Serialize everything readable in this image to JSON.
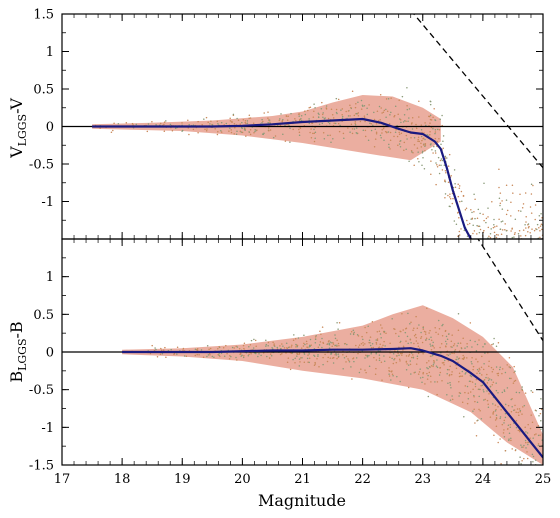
{
  "chart_data": [
    {
      "type": "scatter",
      "panel": "top",
      "title": "",
      "xlabel": "",
      "ylabel_main": "V",
      "ylabel_sub": "LGGS",
      "ylabel_tail": "-V",
      "xlim": [
        17,
        25
      ],
      "ylim": [
        -1.5,
        1.5
      ],
      "yticks": [
        "1.5",
        "1",
        "0.5",
        "0",
        "-0.5",
        "-1"
      ],
      "grid": false,
      "legend": "none",
      "cloud": {
        "description_points": [
          [
            17.5,
            0.03
          ],
          [
            18.5,
            0.05
          ],
          [
            19.5,
            0.08
          ],
          [
            20.5,
            0.14
          ],
          [
            21.0,
            0.2
          ],
          [
            21.5,
            0.32
          ],
          [
            22.0,
            0.42
          ],
          [
            22.5,
            0.4
          ],
          [
            23.0,
            0.25
          ],
          [
            23.3,
            0.1
          ],
          [
            23.3,
            -0.2
          ],
          [
            22.8,
            -0.45
          ],
          [
            22.0,
            -0.35
          ],
          [
            21.0,
            -0.22
          ],
          [
            20.0,
            -0.12
          ],
          [
            19.0,
            -0.06
          ],
          [
            18.0,
            -0.04
          ],
          [
            17.5,
            -0.03
          ]
        ],
        "color": "#e8a08f"
      },
      "scatter_dots": {
        "count": 900,
        "color_a": "#c9895a",
        "color_b": "#8a9a78"
      },
      "series": [
        {
          "style": "median",
          "color": "#1a1a80",
          "x": [
            17.5,
            18.0,
            18.5,
            19.0,
            19.5,
            20.0,
            20.5,
            21.0,
            21.5,
            22.0,
            22.3,
            22.6,
            22.8,
            23.0,
            23.2,
            23.3,
            23.4,
            23.5,
            23.6,
            23.7,
            23.8
          ],
          "y": [
            0.0,
            0.0,
            0.0,
            0.0,
            0.0,
            0.01,
            0.03,
            0.06,
            0.08,
            0.1,
            0.05,
            -0.03,
            -0.08,
            -0.1,
            -0.2,
            -0.3,
            -0.55,
            -0.85,
            -1.1,
            -1.35,
            -1.5
          ]
        }
      ],
      "reference_lines": [
        {
          "style": "solid",
          "x": [
            17,
            25
          ],
          "y": [
            0,
            0
          ]
        },
        {
          "style": "dashed",
          "x": [
            22.8,
            25
          ],
          "y": [
            1.55,
            -0.55
          ]
        }
      ]
    },
    {
      "type": "scatter",
      "panel": "bottom",
      "title": "",
      "xlabel": "Magnitude",
      "ylabel_main": "B",
      "ylabel_sub": "LGGS",
      "ylabel_tail": "-B",
      "xlim": [
        17,
        25
      ],
      "ylim": [
        -1.5,
        1.5
      ],
      "yticks": [
        "1",
        "0.5",
        "0",
        "-0.5",
        "-1",
        "-1.5"
      ],
      "xticks": [
        "17",
        "18",
        "19",
        "20",
        "21",
        "22",
        "23",
        "24",
        "25"
      ],
      "grid": false,
      "legend": "none",
      "cloud": {
        "description_points": [
          [
            18.0,
            0.03
          ],
          [
            19.0,
            0.05
          ],
          [
            20.0,
            0.1
          ],
          [
            21.0,
            0.2
          ],
          [
            22.0,
            0.35
          ],
          [
            22.5,
            0.5
          ],
          [
            23.0,
            0.62
          ],
          [
            23.5,
            0.45
          ],
          [
            24.0,
            0.2
          ],
          [
            24.5,
            -0.2
          ],
          [
            25.0,
            -1.1
          ],
          [
            25.0,
            -1.5
          ],
          [
            24.4,
            -1.2
          ],
          [
            23.8,
            -0.8
          ],
          [
            23.0,
            -0.5
          ],
          [
            22.0,
            -0.35
          ],
          [
            21.0,
            -0.25
          ],
          [
            20.0,
            -0.12
          ],
          [
            19.0,
            -0.06
          ],
          [
            18.0,
            -0.03
          ]
        ],
        "color": "#e8a08f"
      },
      "scatter_dots": {
        "count": 1000,
        "color_a": "#c9895a",
        "color_b": "#8a9a78"
      },
      "series": [
        {
          "style": "median",
          "color": "#1a1a80",
          "x": [
            18.0,
            18.5,
            19.0,
            19.5,
            20.0,
            20.5,
            21.0,
            21.5,
            22.0,
            22.5,
            22.8,
            23.0,
            23.3,
            23.5,
            23.8,
            24.0,
            24.2,
            24.4,
            24.6,
            24.8,
            25.0
          ],
          "y": [
            0.0,
            0.0,
            0.0,
            0.0,
            0.01,
            0.02,
            0.02,
            0.03,
            0.03,
            0.04,
            0.05,
            0.02,
            -0.05,
            -0.12,
            -0.28,
            -0.4,
            -0.6,
            -0.8,
            -1.0,
            -1.2,
            -1.4
          ]
        }
      ],
      "reference_lines": [
        {
          "style": "solid",
          "x": [
            17,
            25
          ],
          "y": [
            0,
            0
          ]
        },
        {
          "style": "dashed",
          "x": [
            23.8,
            25
          ],
          "y": [
            1.65,
            0.15
          ]
        }
      ]
    }
  ]
}
